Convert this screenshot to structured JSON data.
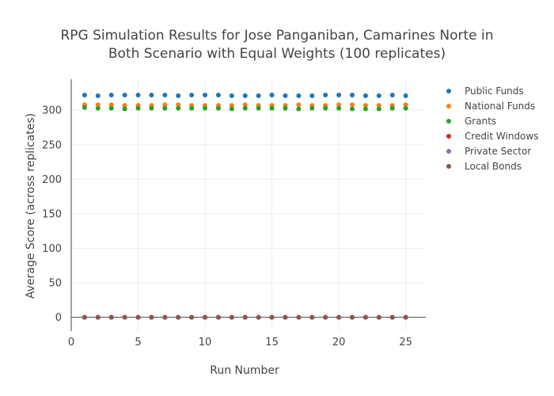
{
  "chart_data": {
    "type": "scatter",
    "title_lines": [
      "RPG Simulation Results for Jose Panganiban, Camarines Norte in",
      "Both Scenario with Equal Weights (100 replicates)"
    ],
    "xlabel": "Run Number",
    "ylabel": "Average Score (across replicates)",
    "xlim": [
      0,
      26.5
    ],
    "ylim": [
      -20,
      345
    ],
    "xticks": [
      0,
      5,
      10,
      15,
      20,
      25
    ],
    "yticks": [
      0,
      50,
      100,
      150,
      200,
      250,
      300
    ],
    "grid": true,
    "legend_position": "top-right",
    "x": [
      1,
      2,
      3,
      4,
      5,
      6,
      7,
      8,
      9,
      10,
      11,
      12,
      13,
      14,
      15,
      16,
      17,
      18,
      19,
      20,
      21,
      22,
      23,
      24,
      25
    ],
    "series": [
      {
        "name": "Public Funds",
        "color": "#1f77b4",
        "values": [
          322,
          321,
          322,
          322,
          322,
          322,
          322,
          321,
          322,
          322,
          322,
          321,
          321,
          321,
          322,
          321,
          321,
          321,
          322,
          322,
          322,
          321,
          321,
          322,
          321
        ]
      },
      {
        "name": "National Funds",
        "color": "#ff7f0e",
        "values": [
          308,
          308,
          308,
          307,
          307,
          307,
          308,
          308,
          307,
          307,
          307,
          307,
          308,
          307,
          307,
          307,
          308,
          307,
          307,
          308,
          308,
          307,
          307,
          307,
          308
        ]
      },
      {
        "name": "Grants",
        "color": "#2ca02c",
        "values": [
          304,
          303,
          303,
          302,
          303,
          303,
          303,
          303,
          303,
          303,
          303,
          302,
          303,
          303,
          303,
          303,
          302,
          303,
          303,
          303,
          302,
          302,
          302,
          303,
          303
        ]
      },
      {
        "name": "Credit Windows",
        "color": "#d62728",
        "values": [
          0,
          0,
          0,
          0,
          0,
          0,
          0,
          0,
          0,
          0,
          0,
          0,
          0,
          0,
          0,
          0,
          0,
          0,
          0,
          0,
          0,
          0,
          0,
          0,
          0
        ]
      },
      {
        "name": "Private Sector",
        "color": "#9467bd",
        "values": [
          0,
          0,
          0,
          0,
          0,
          0,
          0,
          0,
          0,
          0,
          0,
          0,
          0,
          0,
          0,
          0,
          0,
          0,
          0,
          0,
          0,
          0,
          0,
          0,
          0
        ]
      },
      {
        "name": "Local Bonds",
        "color": "#8c564b",
        "values": [
          0,
          0,
          0,
          0,
          0,
          0,
          0,
          0,
          0,
          0,
          0,
          0,
          0,
          0,
          0,
          0,
          0,
          0,
          0,
          0,
          0,
          0,
          0,
          0,
          0
        ]
      }
    ]
  }
}
